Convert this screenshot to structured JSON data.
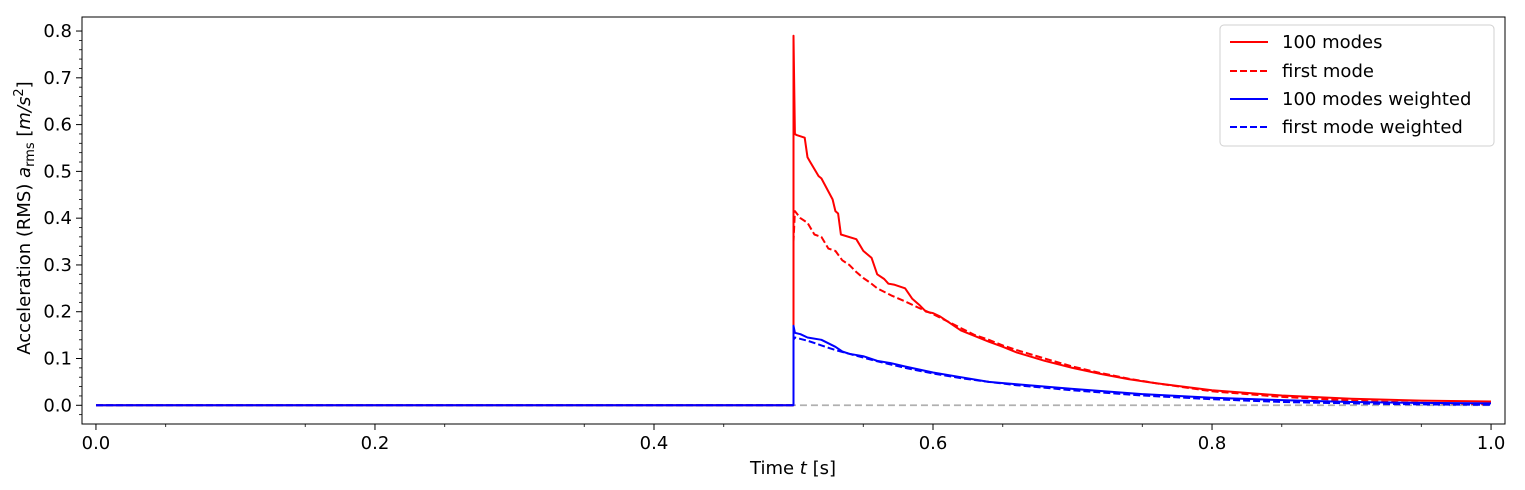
{
  "chart_data": {
    "type": "line",
    "xlabel_prefix": "Time ",
    "xlabel_var": "t",
    "xlabel_unit": " [s]",
    "ylabel_prefix": "Acceleration (RMS) ",
    "ylabel_var": "a",
    "ylabel_sub": "rms",
    "ylabel_unit_open": " [",
    "ylabel_unit": "m/s",
    "ylabel_unit_exp": "2",
    "ylabel_unit_close": "]",
    "xlim": [
      -0.01,
      1.01
    ],
    "ylim": [
      -0.04,
      0.83
    ],
    "x_ticks": [
      0.0,
      0.2,
      0.4,
      0.6,
      0.8,
      1.0
    ],
    "x_tick_labels": [
      "0.0",
      "0.2",
      "0.4",
      "0.6",
      "0.8",
      "1.0"
    ],
    "y_ticks": [
      0.0,
      0.1,
      0.2,
      0.3,
      0.4,
      0.5,
      0.6,
      0.7,
      0.8
    ],
    "y_tick_labels": [
      "0.0",
      "0.1",
      "0.2",
      "0.3",
      "0.4",
      "0.5",
      "0.6",
      "0.7",
      "0.8"
    ],
    "grid": false,
    "legend_position": "top-right",
    "baseline": {
      "value": 0.0,
      "color": "#b0b0b0",
      "dashed": true
    },
    "series": [
      {
        "name": "100 modes",
        "color": "#ff0000",
        "dashed": false,
        "x": [
          0.0,
          0.5,
          0.5,
          0.501,
          0.502,
          0.508,
          0.51,
          0.512,
          0.518,
          0.52,
          0.528,
          0.53,
          0.532,
          0.534,
          0.545,
          0.55,
          0.556,
          0.56,
          0.565,
          0.568,
          0.572,
          0.58,
          0.585,
          0.59,
          0.595,
          0.6,
          0.605,
          0.61,
          0.62,
          0.63,
          0.64,
          0.65,
          0.66,
          0.68,
          0.7,
          0.72,
          0.74,
          0.76,
          0.8,
          0.85,
          0.9,
          0.95,
          1.0
        ],
        "y": [
          0.0,
          0.0,
          0.79,
          0.58,
          0.578,
          0.572,
          0.53,
          0.52,
          0.49,
          0.485,
          0.44,
          0.415,
          0.41,
          0.365,
          0.355,
          0.33,
          0.315,
          0.28,
          0.27,
          0.26,
          0.258,
          0.25,
          0.228,
          0.215,
          0.2,
          0.197,
          0.19,
          0.18,
          0.16,
          0.148,
          0.136,
          0.125,
          0.113,
          0.095,
          0.08,
          0.067,
          0.056,
          0.047,
          0.032,
          0.021,
          0.014,
          0.01,
          0.008
        ]
      },
      {
        "name": "first mode",
        "color": "#ff0000",
        "dashed": true,
        "x": [
          0.0,
          0.5,
          0.5,
          0.501,
          0.505,
          0.51,
          0.515,
          0.52,
          0.525,
          0.53,
          0.535,
          0.54,
          0.545,
          0.55,
          0.555,
          0.56,
          0.57,
          0.58,
          0.59,
          0.6,
          0.61,
          0.62,
          0.63,
          0.64,
          0.65,
          0.66,
          0.68,
          0.7,
          0.72,
          0.74,
          0.76,
          0.8,
          0.85,
          0.9,
          0.95,
          1.0
        ],
        "y": [
          0.0,
          0.0,
          0.35,
          0.415,
          0.4,
          0.39,
          0.365,
          0.36,
          0.335,
          0.33,
          0.31,
          0.3,
          0.285,
          0.272,
          0.262,
          0.25,
          0.235,
          0.222,
          0.208,
          0.195,
          0.18,
          0.165,
          0.15,
          0.14,
          0.128,
          0.118,
          0.1,
          0.083,
          0.069,
          0.057,
          0.047,
          0.03,
          0.018,
          0.01,
          0.005,
          0.002
        ]
      },
      {
        "name": "100 modes weighted",
        "color": "#0000ff",
        "dashed": false,
        "x": [
          0.0,
          0.5,
          0.5,
          0.501,
          0.505,
          0.51,
          0.52,
          0.53,
          0.535,
          0.54,
          0.55,
          0.56,
          0.57,
          0.58,
          0.6,
          0.62,
          0.64,
          0.66,
          0.7,
          0.75,
          0.8,
          0.85,
          0.9,
          0.95,
          1.0
        ],
        "y": [
          0.0,
          0.0,
          0.17,
          0.155,
          0.152,
          0.145,
          0.14,
          0.125,
          0.115,
          0.11,
          0.105,
          0.095,
          0.09,
          0.083,
          0.07,
          0.06,
          0.05,
          0.045,
          0.035,
          0.024,
          0.016,
          0.011,
          0.007,
          0.005,
          0.004
        ]
      },
      {
        "name": "first mode weighted",
        "color": "#0000ff",
        "dashed": true,
        "x": [
          0.0,
          0.5,
          0.5,
          0.501,
          0.51,
          0.52,
          0.53,
          0.54,
          0.55,
          0.56,
          0.58,
          0.6,
          0.62,
          0.64,
          0.66,
          0.7,
          0.75,
          0.8,
          0.85,
          0.9,
          0.95,
          1.0
        ],
        "y": [
          0.0,
          0.0,
          0.14,
          0.145,
          0.138,
          0.128,
          0.118,
          0.11,
          0.102,
          0.094,
          0.08,
          0.068,
          0.058,
          0.05,
          0.043,
          0.032,
          0.021,
          0.013,
          0.007,
          0.004,
          0.002,
          0.001
        ]
      }
    ]
  }
}
